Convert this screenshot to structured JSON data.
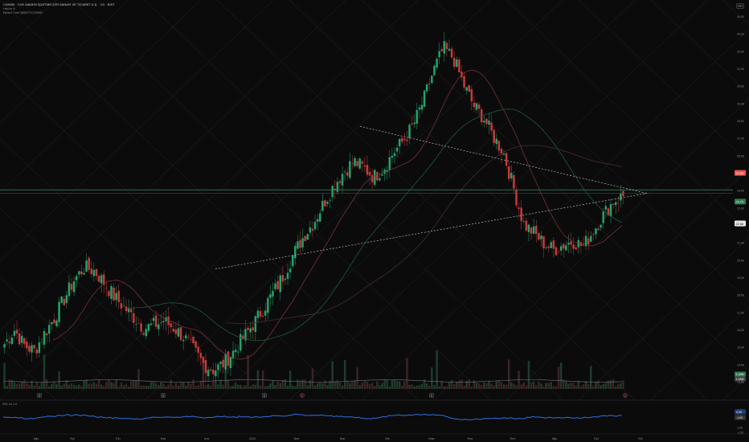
{
  "header": {
    "title": "CVKMD · CVK MADEN İŞLETMELERİ SANAYİ VE TİCARET A.Ş. · 1G · BIST",
    "subtitle": "Hacim 6",
    "note": "Birinci Sınıf @BİST:CVKMD"
  },
  "currency_button": "TRY",
  "chart_data": {
    "type": "candlestick",
    "title": "",
    "price_axis": {
      "ticks": [
        "34,00",
        "33,00",
        "32,00",
        "31,00",
        "30,00",
        "29,00",
        "28,00",
        "27,00",
        "26,00",
        "25,00",
        "24,00",
        "23,00",
        "22,00",
        "21,00",
        "20,00",
        "19,00",
        "18,00",
        "17,00",
        "16,00",
        "15,00",
        "14,00",
        "13,00"
      ],
      "ylim": [
        12.8,
        34.4
      ]
    },
    "price_badges": [
      {
        "value": "24,98",
        "color": "#ef5350"
      },
      {
        "value": "23,70",
        "color": "#2e7d4f"
      },
      {
        "value": "22,66",
        "color": "#e6e7e9"
      }
    ],
    "volume_badges": [
      {
        "value": "1,15M",
        "color": "#2e7d4f"
      },
      {
        "value": "1,03M",
        "color": "#444"
      }
    ],
    "time_axis": [
      "Ağu",
      "Eyl",
      "Ekı",
      "Kas",
      "Ara",
      "2024",
      "Şub",
      "Mar",
      "Nis",
      "May",
      "Haz",
      "Tem",
      "Ağu",
      "Eyl",
      "Eki"
    ],
    "close_path": [
      15.2,
      16.0,
      15.1,
      14.8,
      15.8,
      16.7,
      17.8,
      18.9,
      19.6,
      19.4,
      18.7,
      17.9,
      17.3,
      16.7,
      16.1,
      16.3,
      16.5,
      16.1,
      15.6,
      14.8,
      14.0,
      13.7,
      14.1,
      14.8,
      15.6,
      16.4,
      17.3,
      18.2,
      19.2,
      20.4,
      21.4,
      22.2,
      23.3,
      24.3,
      25.1,
      25.7,
      25.3,
      24.8,
      25.3,
      26.2,
      26.9,
      27.8,
      29.2,
      30.9,
      32.2,
      31.6,
      30.1,
      28.9,
      28.2,
      27.1,
      26.2,
      24.2,
      22.1,
      21.6,
      21.0,
      20.6,
      20.9,
      21.1,
      20.8,
      21.7,
      22.6,
      23.4,
      23.7
    ],
    "trendlines": [
      {
        "name": "upper",
        "from": [
          "2024 early",
          27.7
        ],
        "to": [
          "Eki",
          23.8
        ]
      },
      {
        "name": "lower",
        "from": [
          "Kas",
          19.6
        ],
        "to": [
          "Eki",
          23.8
        ]
      }
    ],
    "event_markers": [
      "D",
      "D",
      "D",
      "E",
      "D",
      "E"
    ],
    "oscillator": {
      "label": "RSI 14 14",
      "badges": [
        "0,00",
        "-1,00"
      ],
      "ticks": [
        "5,00",
        "3,00",
        "1,00",
        "-1,00"
      ]
    }
  }
}
